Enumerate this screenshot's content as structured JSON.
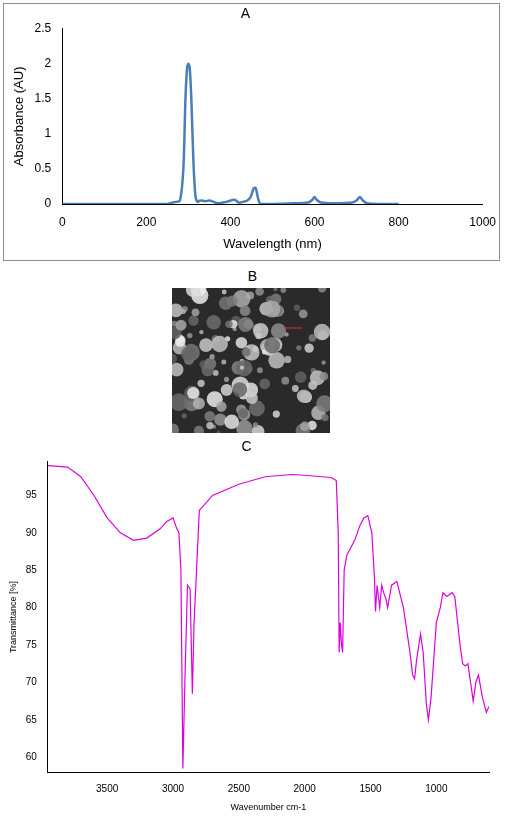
{
  "chart_data": [
    {
      "type": "line",
      "title": "A",
      "x_label": "Wavelength (nm)",
      "y_label": "Absorbance (AU)",
      "color": "#4a7ebb",
      "grid": false,
      "x": [
        0,
        100,
        200,
        250,
        262,
        270,
        280,
        288,
        293,
        297,
        300,
        303,
        307,
        312,
        317,
        322,
        328,
        340,
        350,
        360,
        370,
        390,
        410,
        420,
        430,
        440,
        448,
        455,
        460,
        465,
        470,
        480,
        500,
        550,
        585,
        595,
        600,
        605,
        615,
        650,
        690,
        700,
        708,
        715,
        725,
        760,
        800
      ],
      "values": [
        0,
        0,
        0,
        0,
        0.02,
        0.03,
        0.05,
        0.5,
        1.5,
        1.95,
        2.0,
        1.95,
        1.5,
        0.6,
        0.1,
        0.03,
        0.05,
        0.04,
        0.05,
        0.03,
        0.01,
        0.03,
        0.06,
        0.02,
        0.03,
        0.05,
        0.1,
        0.22,
        0.23,
        0.1,
        0.01,
        0,
        0,
        0.01,
        0.02,
        0.06,
        0.1,
        0.06,
        0.02,
        0.01,
        0.02,
        0.05,
        0.1,
        0.05,
        0.01,
        0,
        0
      ],
      "xlim": [
        0,
        1000
      ],
      "xticks": [
        0,
        200,
        400,
        600,
        800,
        1000
      ],
      "ylim": [
        0,
        2.5
      ],
      "yticks": [
        0,
        0.5,
        1,
        1.5,
        2,
        2.5
      ]
    },
    {
      "type": "line",
      "title": "C",
      "x_label": "Wavenumber cm-1",
      "y_label": "Transmittance [%]",
      "color": "#dd00dd",
      "grid": false,
      "x": [
        3950,
        3800,
        3700,
        3600,
        3500,
        3400,
        3300,
        3200,
        3100,
        3050,
        3000,
        2970,
        2955,
        2940,
        2925,
        2910,
        2890,
        2870,
        2853,
        2840,
        2800,
        2700,
        2500,
        2300,
        2100,
        2000,
        1800,
        1760,
        1745,
        1738,
        1730,
        1720,
        1712,
        1700,
        1680,
        1650,
        1620,
        1580,
        1550,
        1520,
        1490,
        1470,
        1462,
        1450,
        1430,
        1415,
        1400,
        1380,
        1370,
        1340,
        1300,
        1250,
        1200,
        1180,
        1165,
        1150,
        1120,
        1100,
        1075,
        1060,
        1040,
        1000,
        970,
        950,
        920,
        880,
        860,
        820,
        800,
        780,
        760,
        740,
        720,
        700,
        680,
        650,
        620,
        600
      ],
      "values": [
        99,
        98.8,
        97.5,
        95,
        92,
        90,
        89,
        89.3,
        90.5,
        91.5,
        92,
        90.5,
        90,
        85,
        58.5,
        70,
        83,
        82.5,
        68.5,
        78,
        93,
        95,
        96.5,
        97.5,
        97.8,
        97.7,
        97.4,
        97,
        90,
        74,
        78,
        75,
        74,
        85,
        87,
        88,
        89,
        91,
        92,
        92.3,
        90,
        84,
        79.5,
        83,
        80,
        83,
        82,
        81,
        80,
        83,
        83.5,
        80,
        74,
        71,
        70.5,
        73,
        76.5,
        74,
        67,
        65,
        68,
        78,
        80,
        82,
        81.5,
        82,
        81.5,
        75,
        72.5,
        72.2,
        72.5,
        70,
        67.5,
        70,
        71,
        68,
        66,
        66.8
      ],
      "xlim": [
        3950,
        600
      ],
      "xticks": [
        3500,
        3000,
        2500,
        2000,
        1500,
        1000
      ],
      "ylim": [
        58,
        99.5
      ],
      "yticks": [
        60,
        65,
        70,
        75,
        80,
        85,
        90,
        95
      ]
    }
  ],
  "images": [
    {
      "title": "B"
    }
  ]
}
